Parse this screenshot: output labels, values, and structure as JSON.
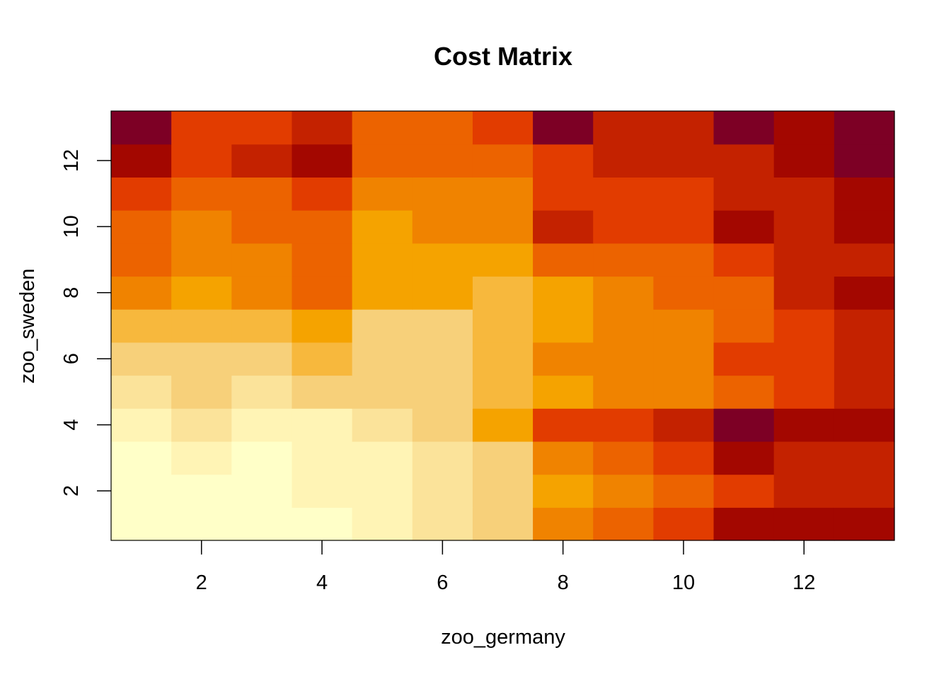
{
  "chart_data": {
    "type": "heatmap",
    "title": "Cost Matrix",
    "xlabel": "zoo_germany",
    "ylabel": "zoo_sweden",
    "x": [
      1,
      2,
      3,
      4,
      5,
      6,
      7,
      8,
      9,
      10,
      11,
      12,
      13
    ],
    "y": [
      1,
      2,
      3,
      4,
      5,
      6,
      7,
      8,
      9,
      10,
      11,
      12,
      13
    ],
    "xlim": [
      0.5,
      13.5
    ],
    "ylim": [
      0.5,
      13.5
    ],
    "x_ticks": [
      2,
      4,
      6,
      8,
      10,
      12
    ],
    "y_ticks": [
      2,
      4,
      6,
      8,
      10,
      12
    ],
    "palette": "heat.colors (reversed)",
    "palette_colors": [
      "#FFFFC8",
      "#FFF4B5",
      "#FBE39A",
      "#F7D07A",
      "#F7B83D",
      "#F5A300",
      "#F08300",
      "#EC6300",
      "#E23C00",
      "#C42200",
      "#A30700",
      "#7D0025"
    ],
    "legend": "none",
    "grid": false,
    "values_note": "value levels 0 (lightest) to 11 (darkest); rows listed from y=1 upward",
    "values": [
      [
        0,
        0,
        0,
        0,
        1,
        2,
        3,
        6,
        7,
        8,
        10,
        10,
        10
      ],
      [
        0,
        0,
        0,
        1,
        1,
        2,
        3,
        5,
        6,
        7,
        8,
        9,
        9
      ],
      [
        0,
        1,
        0,
        1,
        1,
        2,
        3,
        6,
        7,
        8,
        10,
        9,
        9
      ],
      [
        1,
        2,
        1,
        1,
        2,
        3,
        5,
        8,
        8,
        9,
        11,
        10,
        10
      ],
      [
        2,
        3,
        2,
        3,
        3,
        3,
        4,
        5,
        6,
        6,
        7,
        8,
        9
      ],
      [
        3,
        3,
        3,
        4,
        3,
        3,
        4,
        6,
        6,
        6,
        8,
        8,
        9
      ],
      [
        4,
        4,
        4,
        5,
        3,
        3,
        4,
        5,
        6,
        6,
        7,
        8,
        9
      ],
      [
        6,
        5,
        6,
        7,
        5,
        5,
        4,
        5,
        6,
        7,
        7,
        9,
        10
      ],
      [
        7,
        6,
        6,
        7,
        5,
        5,
        5,
        7,
        7,
        7,
        8,
        9,
        9
      ],
      [
        7,
        6,
        7,
        7,
        5,
        6,
        6,
        9,
        8,
        8,
        10,
        9,
        10
      ],
      [
        8,
        7,
        7,
        8,
        6,
        6,
        6,
        8,
        8,
        8,
        9,
        9,
        10
      ],
      [
        10,
        8,
        9,
        10,
        7,
        7,
        7,
        8,
        9,
        9,
        9,
        10,
        11
      ],
      [
        11,
        8,
        8,
        9,
        7,
        7,
        8,
        11,
        9,
        9,
        11,
        10,
        11
      ]
    ]
  }
}
